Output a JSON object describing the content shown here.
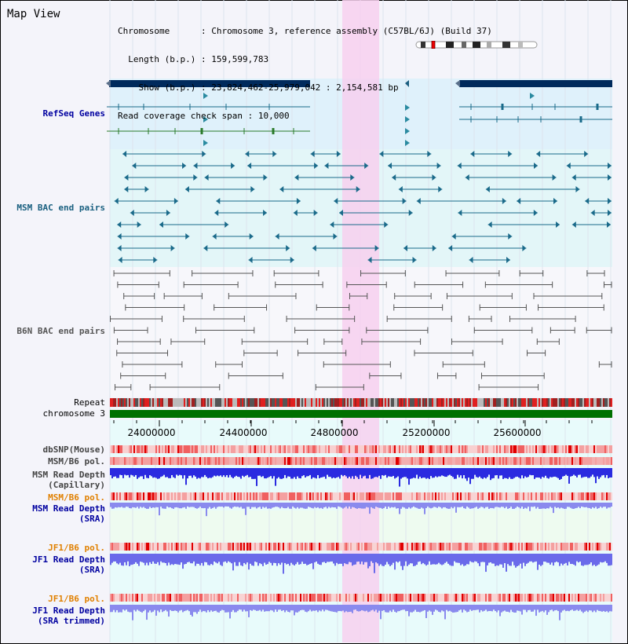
{
  "title": "Map View",
  "info": {
    "chromosome_key": "Chromosome",
    "chromosome_val": "Chromosome 3, reference assembly (C57BL/6J) (Build 37)",
    "length_key": "Length (b.p.)",
    "length_val": "159,599,783",
    "show_key": "Show (b.p.)",
    "show_val": "23,824,462-25,979,042 : 2,154,581 bp",
    "span_key": "Read coverage check span",
    "span_val": "10,000"
  },
  "tracks": {
    "refseq": "RefSeq Genes",
    "msm_bac": "MSM BAC end pairs",
    "b6n_bac": "B6N BAC end pairs",
    "repeat": "Repeat",
    "chromosome": "chromosome 3",
    "dbsnp": "dbSNP(Mouse)",
    "msm_b6_pol_1": "MSM/B6 pol.",
    "msm_read_depth_cap_1": "MSM Read Depth",
    "msm_read_depth_cap_2": "(Capillary)",
    "msm_b6_pol_2": "MSM/B6 pol.",
    "msm_read_depth_sra_1": "MSM Read Depth",
    "msm_read_depth_sra_2": "(SRA)",
    "jf1_b6_pol_1": "JF1/B6 pol.",
    "jf1_read_depth_sra_1": "JF1 Read Depth",
    "jf1_read_depth_sra_2": "(SRA)",
    "jf1_b6_pol_2": "JF1/B6 pol.",
    "jf1_read_depth_trim_1": "JF1 Read Depth",
    "jf1_read_depth_trim_2": "(SRA trimmed)"
  },
  "axis": {
    "ticks": [
      "24000000",
      "24400000",
      "24800000",
      "25200000",
      "25600000"
    ]
  },
  "colors": {
    "refseq_bg": "#dff1fb",
    "msm_bg": "#e3f6f8",
    "highlight": "#f7d0ee",
    "gene_dark": "#002a5c",
    "msm_feature": "#1a6a8a",
    "b6n_feature": "#555555",
    "chromosome_bar": "#007000",
    "depth_blue": "#2a2ae0",
    "depth_light": "#8a8aee",
    "label_blue": "#0000a0",
    "label_teal": "#1a6080",
    "label_orange": "#e08000"
  }
}
